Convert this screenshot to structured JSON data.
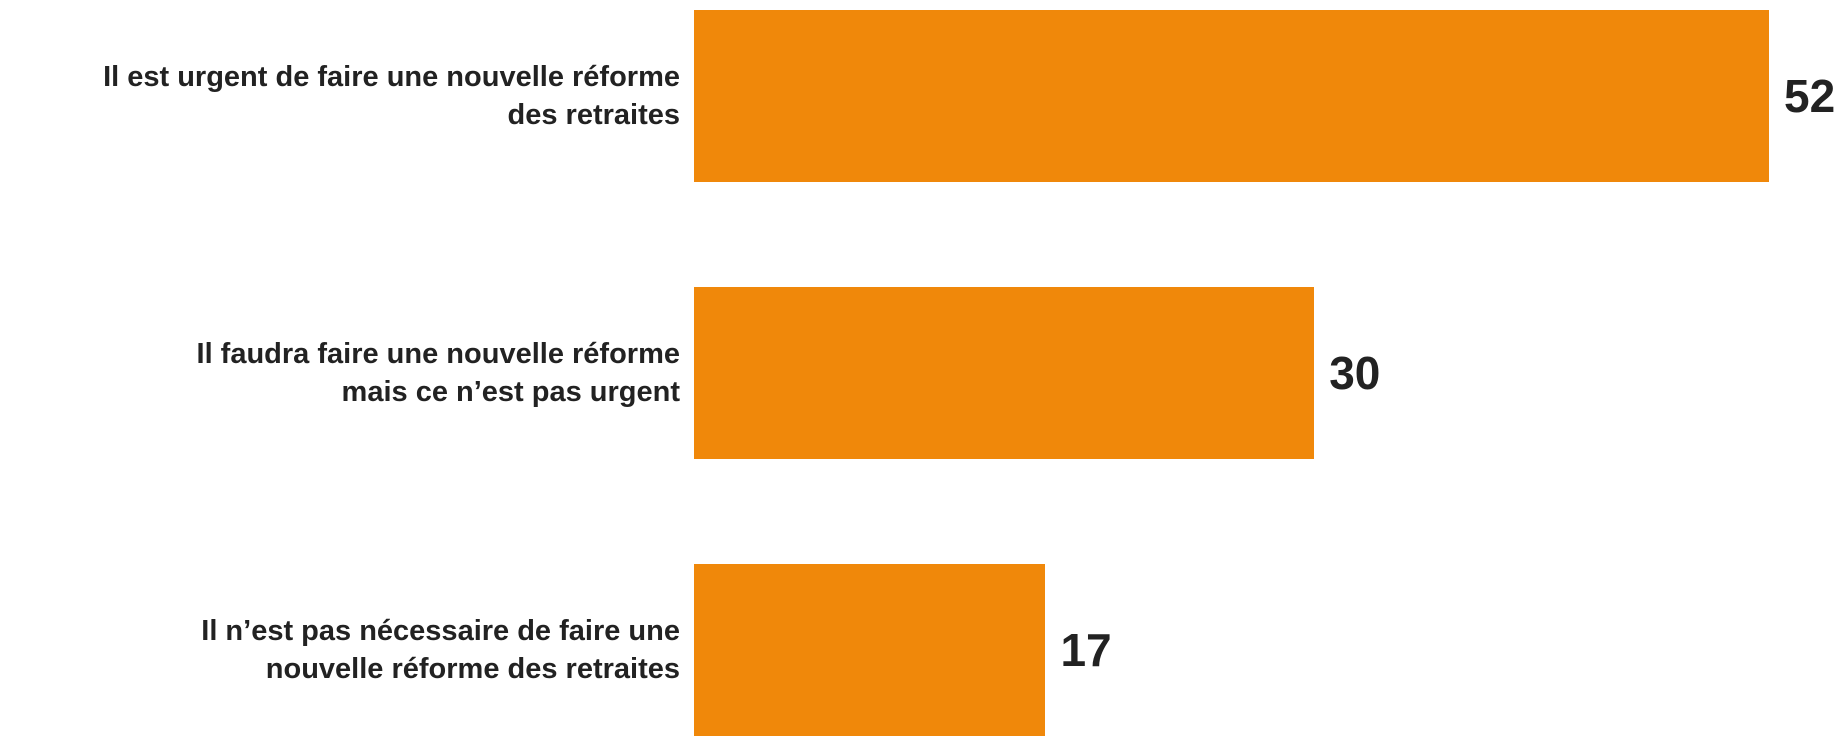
{
  "chart_data": {
    "type": "bar",
    "orientation": "horizontal",
    "categories": [
      "Il est urgent de faire une nouvelle réforme des retraites",
      "Il faudra faire une nouvelle réforme mais ce n’est pas urgent",
      "Il n’est pas nécessaire de faire une nouvelle réforme des retraites"
    ],
    "category_lines": [
      [
        "Il est urgent de faire une nouvelle réforme",
        "des retraites"
      ],
      [
        "Il faudra faire une nouvelle réforme",
        "mais ce n’est pas urgent"
      ],
      [
        "Il n’est pas nécessaire de faire une",
        "nouvelle réforme des retraites"
      ]
    ],
    "values": [
      52,
      30,
      17
    ],
    "value_labels": [
      "52",
      "30",
      "17"
    ],
    "title": "",
    "xlabel": "",
    "ylabel": "",
    "xlim": [
      0,
      52
    ],
    "grid": false,
    "legend": "none",
    "bar_color": "#F0880A"
  }
}
